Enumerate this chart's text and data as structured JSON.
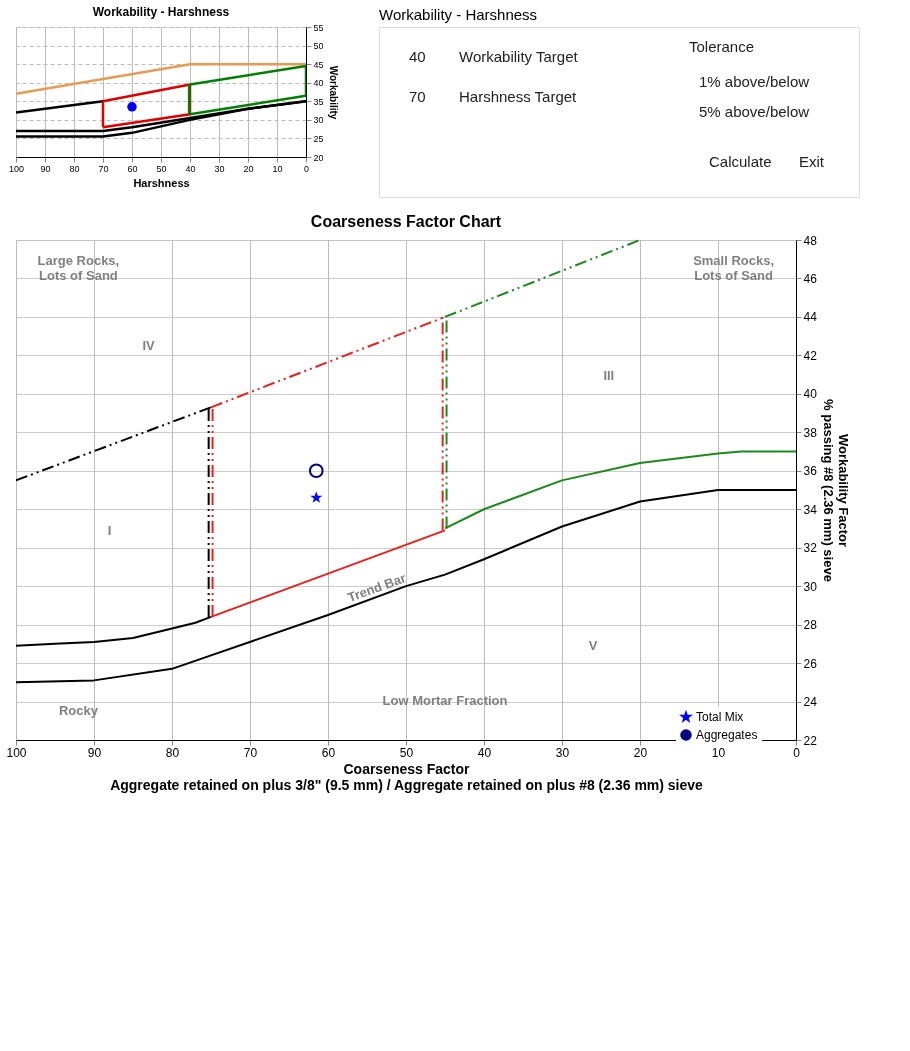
{
  "chart_data": [
    {
      "type": "other",
      "title": "Workability - Harshness",
      "annotations": [
        "40",
        "Workability Target",
        "70",
        "Harshness Target",
        "Tolerance",
        "1% above/below",
        "5% above/below",
        "Calculate",
        "Exit"
      ]
    },
    {
      "type": "line",
      "title": "Workability - Harshness",
      "xlabel": "Harshness",
      "ylabel": "Workability",
      "xlim": [
        100,
        0
      ],
      "xticks": [
        100,
        90,
        80,
        70,
        60,
        50,
        40,
        30,
        20,
        10,
        0
      ],
      "ylim": [
        20,
        55
      ],
      "yticks": [
        20,
        25,
        30,
        35,
        40,
        45,
        50,
        55
      ],
      "grid": true,
      "series": [
        {
          "type": "line",
          "color": "#e89a50",
          "x": [
            100,
            40,
            0
          ],
          "values": [
            37,
            45,
            45
          ]
        },
        {
          "type": "line",
          "color": "#000000",
          "x": [
            100,
            70
          ],
          "values": [
            32,
            35
          ]
        },
        {
          "type": "line",
          "color": "#000000",
          "x": [
            100,
            70,
            60,
            40,
            20,
            0
          ],
          "values": [
            27,
            27,
            28,
            30.5,
            33,
            35
          ]
        },
        {
          "type": "line",
          "color": "#000000",
          "x": [
            100,
            70,
            60,
            40,
            20,
            0
          ],
          "values": [
            25.5,
            25.5,
            26.5,
            30,
            33,
            35
          ]
        },
        {
          "type": "line",
          "color": "#e00000",
          "x": [
            70,
            40
          ],
          "values": [
            35,
            39.5
          ]
        },
        {
          "type": "line",
          "color": "#e00000",
          "x": [
            70,
            40
          ],
          "values": [
            28,
            31.5
          ]
        },
        {
          "type": "line",
          "color": "#e00000",
          "x": [
            70,
            70
          ],
          "values": [
            28,
            35
          ]
        },
        {
          "type": "line",
          "color": "#e00000",
          "x": [
            40,
            40
          ],
          "values": [
            31.5,
            39.5
          ]
        },
        {
          "type": "line",
          "color": "#008000",
          "x": [
            40,
            0
          ],
          "values": [
            39.5,
            44.5
          ]
        },
        {
          "type": "line",
          "color": "#008000",
          "x": [
            40,
            0
          ],
          "values": [
            31.5,
            36.5
          ]
        },
        {
          "type": "line",
          "color": "#008000",
          "x": [
            40.3,
            40.3
          ],
          "values": [
            31.5,
            39.5
          ]
        },
        {
          "type": "line",
          "color": "#008000",
          "x": [
            0,
            0
          ],
          "values": [
            36.5,
            44.5
          ]
        },
        {
          "type": "scatter",
          "color": "#0000ff",
          "marker": "circle",
          "x": [
            60
          ],
          "values": [
            33.5
          ]
        }
      ]
    },
    {
      "type": "line",
      "title": "Coarseness Factor Chart",
      "xlabel": "Coarseness Factor\nAggregate retained on plus 3/8\" (9.5 mm) / Aggregate retained on plus #8 (2.36 mm) sieve",
      "ylabel": "Workability Factor\n% passing #8 (2.36 mm) sieve",
      "xlim": [
        100,
        0
      ],
      "xticks": [
        100,
        90,
        80,
        70,
        60,
        50,
        40,
        30,
        20,
        10,
        0
      ],
      "ylim": [
        22,
        48
      ],
      "yticks": [
        22,
        24,
        26,
        28,
        30,
        32,
        34,
        36,
        38,
        40,
        42,
        44,
        46,
        48
      ],
      "grid": true,
      "legend": "bottom right",
      "series": [
        {
          "type": "line",
          "color": "#000000",
          "line_style": "solid",
          "x": [
            100,
            95,
            90,
            85,
            80,
            77,
            75
          ],
          "values": [
            26.9,
            27,
            27.1,
            27.3,
            27.8,
            28.1,
            28.4
          ]
        },
        {
          "type": "line",
          "color": "#000000",
          "line_style": "solid",
          "x": [
            100,
            90,
            80,
            75,
            60,
            50,
            45,
            40,
            30,
            20,
            10,
            0
          ],
          "values": [
            25,
            25.1,
            25.7,
            26.4,
            28.5,
            30,
            30.6,
            31.4,
            33.1,
            34.4,
            35,
            35
          ]
        },
        {
          "type": "line",
          "color": "#e8201e",
          "line_style": "solid",
          "x": [
            75,
            45
          ],
          "values": [
            28.4,
            32.9
          ]
        },
        {
          "type": "line",
          "color": "#1a8a1a",
          "line_style": "solid",
          "x": [
            45,
            40,
            30,
            20,
            10,
            7,
            0
          ],
          "values": [
            33,
            34,
            35.5,
            36.4,
            36.9,
            37,
            37
          ]
        },
        {
          "type": "line",
          "color": "#000000",
          "line_style": "dashed",
          "x": [
            100,
            75
          ],
          "values": [
            35.5,
            39.3
          ]
        },
        {
          "type": "line",
          "color": "#e8201e",
          "line_style": "dashed",
          "x": [
            75,
            45
          ],
          "values": [
            39.3,
            44
          ]
        },
        {
          "type": "line",
          "color": "#1a8a1a",
          "line_style": "dashed",
          "x": [
            45,
            20
          ],
          "values": [
            44,
            48
          ]
        },
        {
          "type": "line",
          "color": "#000000",
          "line_style": "dashed",
          "x": [
            75.3,
            75.3
          ],
          "values": [
            28.4,
            39.3
          ]
        },
        {
          "type": "line",
          "color": "#e8201e",
          "line_style": "dashed",
          "x": [
            74.8,
            74.8
          ],
          "values": [
            28.4,
            39.3
          ]
        },
        {
          "type": "line",
          "color": "#e8201e",
          "line_style": "dashed",
          "x": [
            45.3,
            45.3
          ],
          "values": [
            32.9,
            44
          ]
        },
        {
          "type": "line",
          "color": "#1a8a1a",
          "line_style": "dashed",
          "x": [
            44.8,
            44.8
          ],
          "values": [
            33,
            44
          ]
        },
        {
          "type": "scatter",
          "name": "Total Mix",
          "color": "#0000ff",
          "marker": "star",
          "x": [
            61.5
          ],
          "values": [
            34.6
          ]
        },
        {
          "type": "scatter",
          "name": "Aggregates",
          "color": "#000080",
          "marker": "circle",
          "x": [
            61.5
          ],
          "values": [
            36
          ]
        }
      ],
      "annotations": [
        "Large Rocks,\nLots of Sand",
        "Small Rocks,\nLots of Sand",
        "IV",
        "III",
        "I",
        "V",
        "Trend Bar",
        "Rocky",
        "Low Mortar Fraction"
      ]
    }
  ]
}
